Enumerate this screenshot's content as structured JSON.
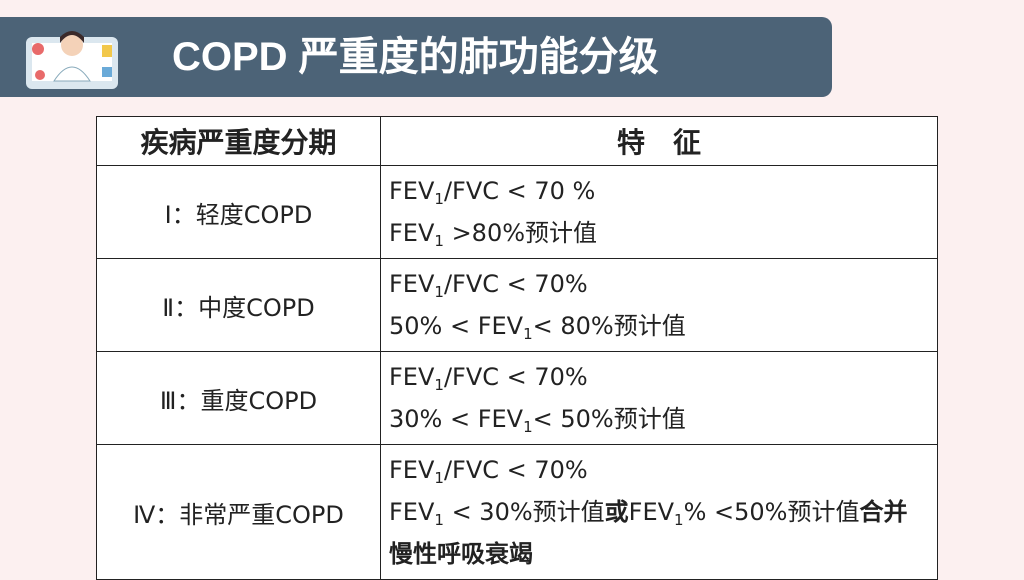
{
  "header": {
    "title": "COPD 严重度的肺功能分级"
  },
  "table": {
    "columns": [
      "疾病严重度分期",
      "特　征"
    ],
    "rows": [
      {
        "stage": "Ⅰ：轻度COPD",
        "features": [
          [
            {
              "t": "FEV"
            },
            {
              "sub": "1"
            },
            {
              "t": "/FVC < 70 %"
            }
          ],
          [
            {
              "t": "FEV"
            },
            {
              "sub": "1"
            },
            {
              "t": " >80%预计值"
            }
          ]
        ]
      },
      {
        "stage": "Ⅱ：中度COPD",
        "features": [
          [
            {
              "t": "FEV"
            },
            {
              "sub": "1"
            },
            {
              "t": "/FVC < 70%"
            }
          ],
          [
            {
              "t": "50% < FEV"
            },
            {
              "sub": "1"
            },
            {
              "t": "< 80%预计值"
            }
          ]
        ]
      },
      {
        "stage": "Ⅲ：重度COPD",
        "features": [
          [
            {
              "t": "FEV"
            },
            {
              "sub": "1"
            },
            {
              "t": "/FVC < 70%"
            }
          ],
          [
            {
              "t": "30% < FEV"
            },
            {
              "sub": "1"
            },
            {
              "t": "< 50%预计值"
            }
          ]
        ]
      },
      {
        "stage": "Ⅳ：非常严重COPD",
        "features": [
          [
            {
              "t": "FEV"
            },
            {
              "sub": "1"
            },
            {
              "t": "/FVC < 70%"
            }
          ],
          [
            {
              "t": "FEV"
            },
            {
              "sub": "1"
            },
            {
              "t": " < 30%预计值"
            },
            {
              "t": "或",
              "b": true
            },
            {
              "t": "FEV"
            },
            {
              "sub": "1"
            },
            {
              "t": "% <50%预计值"
            },
            {
              "t": "合并慢性呼吸衰竭",
              "b": true
            }
          ]
        ]
      }
    ]
  }
}
